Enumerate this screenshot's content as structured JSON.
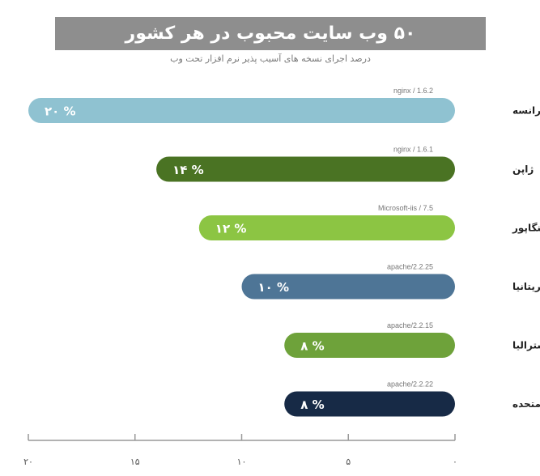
{
  "chart_data": {
    "type": "bar",
    "orientation": "horizontal",
    "title": "۵۰ وب سایت محبوب در هر کشور",
    "subtitle": "درصد اجرای نسخه های آسیب پذیر نرم افزار تحت وب",
    "categories": [
      "فرانسه",
      "ژاپن",
      "سنگاپور",
      "بریتانیا",
      "استرالیا",
      "ایالات متحده"
    ],
    "values": [
      20,
      14,
      12,
      10,
      8,
      8
    ],
    "value_labels": [
      "۲۰ %",
      "۱۴ %",
      "۱۲ %",
      "۱۰ %",
      "۸ %",
      "۸ %"
    ],
    "software": [
      "nginx / 1.6.2",
      "nginx / 1.6.1",
      "Microsoft-iis / 7.5",
      "apache/2.2.25",
      "apache/2.2.15",
      "apache/2.2.22"
    ],
    "colors": [
      "#8fc2d1",
      "#4a7323",
      "#8cc543",
      "#4e7596",
      "#6ea23a",
      "#172a46"
    ],
    "xlim": [
      0,
      20
    ],
    "x_ticks": [
      0,
      5,
      10,
      15,
      20
    ],
    "x_tick_labels": [
      "۰",
      "۵",
      "۱۰",
      "۱۵",
      "۲۰"
    ],
    "x_direction": "right-to-left",
    "grid": false
  }
}
